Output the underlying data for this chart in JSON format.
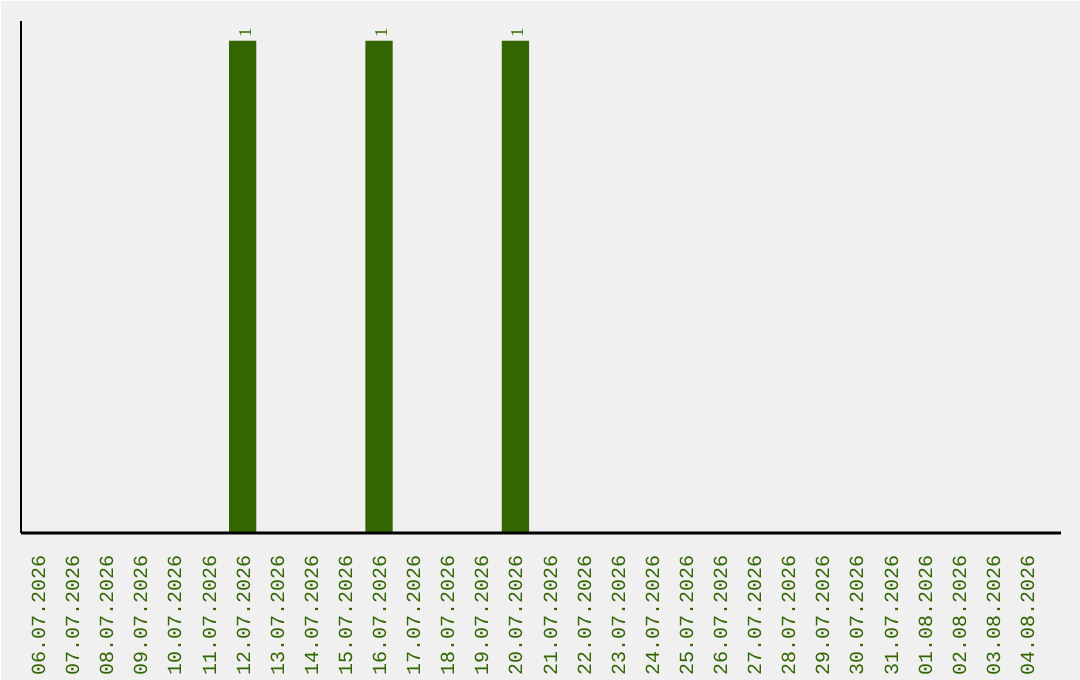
{
  "chart_data": {
    "type": "bar",
    "categories": [
      "06.07.2026",
      "07.07.2026",
      "08.07.2026",
      "09.07.2026",
      "10.07.2026",
      "11.07.2026",
      "12.07.2026",
      "13.07.2026",
      "14.07.2026",
      "15.07.2026",
      "16.07.2026",
      "17.07.2026",
      "18.07.2026",
      "19.07.2026",
      "20.07.2026",
      "21.07.2026",
      "22.07.2026",
      "23.07.2026",
      "24.07.2026",
      "25.07.2026",
      "26.07.2026",
      "27.07.2026",
      "28.07.2026",
      "29.07.2026",
      "30.07.2026",
      "31.07.2026",
      "01.08.2026",
      "02.08.2026",
      "03.08.2026",
      "04.08.2026"
    ],
    "values": [
      0,
      0,
      0,
      0,
      0,
      0,
      1,
      0,
      0,
      0,
      1,
      0,
      0,
      0,
      1,
      0,
      0,
      0,
      0,
      0,
      0,
      0,
      0,
      0,
      0,
      0,
      0,
      0,
      0,
      0
    ],
    "value_labels": [
      null,
      null,
      null,
      null,
      null,
      null,
      "1",
      null,
      null,
      null,
      "1",
      null,
      null,
      null,
      "1",
      null,
      null,
      null,
      null,
      null,
      null,
      null,
      null,
      null,
      null,
      null,
      null,
      null,
      null,
      null
    ],
    "color": "#336600",
    "tick_labels": "x",
    "grid": false
  }
}
